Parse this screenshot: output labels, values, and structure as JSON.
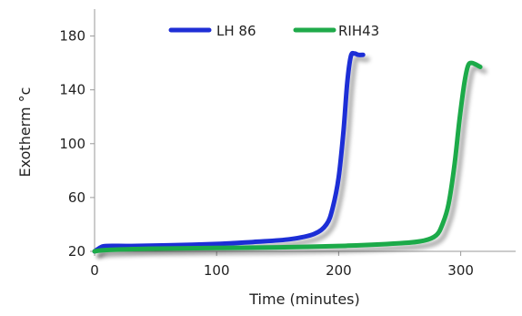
{
  "chart_data": {
    "type": "line",
    "xlabel": "Time (minutes)",
    "ylabel": "Exotherm °c",
    "xlim": [
      0,
      345
    ],
    "ylim": [
      20,
      200
    ],
    "xticks": [
      0,
      100,
      200,
      300
    ],
    "yticks": [
      20,
      60,
      100,
      140,
      180
    ],
    "grid": false,
    "legend": "top",
    "series": [
      {
        "name": "LH 86",
        "color": "#1f2fd6",
        "x": [
          0,
          5,
          10,
          30,
          60,
          100,
          130,
          160,
          180,
          190,
          195,
          200,
          204,
          207,
          210,
          213,
          216,
          220
        ],
        "y": [
          20,
          23,
          24,
          24,
          24.5,
          25.5,
          27,
          29,
          33,
          40,
          52,
          75,
          110,
          145,
          165,
          167,
          166,
          166
        ]
      },
      {
        "name": "RIH43",
        "color": "#1faa4a",
        "x": [
          0,
          10,
          50,
          100,
          150,
          200,
          250,
          270,
          280,
          285,
          290,
          295,
          299,
          303,
          306,
          309,
          312,
          316
        ],
        "y": [
          20,
          21,
          22,
          22.5,
          23,
          24,
          26,
          28,
          32,
          40,
          55,
          85,
          118,
          145,
          158,
          160,
          159,
          157
        ]
      }
    ]
  }
}
